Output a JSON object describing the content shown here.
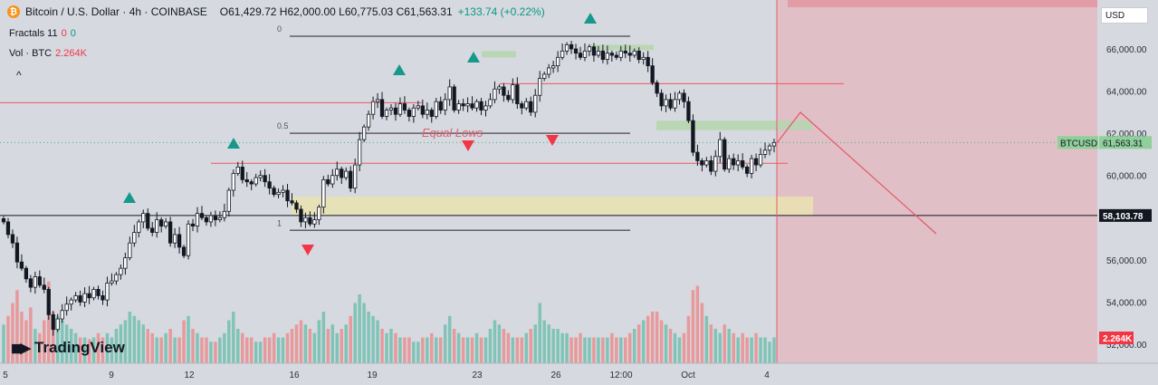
{
  "header": {
    "symbol": "Bitcoin / U.S. Dollar · 4h · COINBASE",
    "ohlc": "O61,429.72 H62,000.00 L60,775.03 C61,563.31",
    "change": "+133.74 (+0.22%)"
  },
  "indicators": {
    "fractals_label": "Fractals 11",
    "fractals_v1": "0",
    "fractals_v2": "0",
    "vol_label": "Vol · BTC",
    "vol_value": "2.264K",
    "collapse_glyph": "^"
  },
  "currency_button": "USD",
  "logo_text": "TradingView",
  "colors": {
    "up": "#2d9c8a",
    "down": "#e0524f",
    "fractal_up": "#14998a",
    "fractal_down": "#f23645",
    "fib_line": "#5d606b",
    "red_line": "#f0585f",
    "zone_yellow": "#e9e2b0",
    "zone_green": "#b6d6b0",
    "projection_zone": "#e9a9b2"
  },
  "chart_data": {
    "type": "candlestick",
    "symbol": "BTCUSD",
    "timeframe": "4h",
    "y_axis": {
      "min": 51000,
      "max": 67700,
      "tick_labels": [
        "66,000.00",
        "64,000.00",
        "62,000.00",
        "60,000.00",
        "56,000.00",
        "54,000.00",
        "52,000.00"
      ],
      "tick_values": [
        66000,
        64000,
        62000,
        60000,
        56000,
        54000,
        52000
      ]
    },
    "x_axis": {
      "tick_labels": [
        "5",
        "9",
        "12",
        "16",
        "19",
        "23",
        "26",
        "12:00",
        "Oct",
        "4"
      ]
    },
    "price_labels": {
      "current_symbol": "BTCUSD",
      "current_price": "61,563.31",
      "crosshair_price": "58,103.78",
      "volume": "2.264K"
    },
    "fib_levels": [
      {
        "label": "0",
        "price": 66600
      },
      {
        "label": "0.5",
        "price": 62000
      },
      {
        "label": "1",
        "price": 57400
      }
    ],
    "horizontal_levels": [
      63450,
      64350,
      60580
    ],
    "crosshair_level": 58103.78,
    "annotations": [
      "Equal Lows"
    ],
    "close_path": [
      57800,
      57200,
      56800,
      55900,
      55600,
      55100,
      54700,
      55200,
      54800,
      54600,
      53400,
      52700,
      53200,
      53600,
      53900,
      54100,
      54300,
      54000,
      54400,
      54200,
      54600,
      54300,
      54100,
      54900,
      55000,
      55300,
      55600,
      56100,
      56800,
      57300,
      57800,
      58200,
      57500,
      57300,
      57900,
      57600,
      57800,
      56800,
      57200,
      56600,
      56200,
      57700,
      57600,
      58200,
      58000,
      57800,
      58100,
      57900,
      58000,
      58300,
      59300,
      60100,
      60400,
      59800,
      59700,
      59600,
      59900,
      60000,
      59700,
      59400,
      59100,
      59200,
      59300,
      58800,
      58700,
      58400,
      57800,
      58000,
      57700,
      57900,
      58500,
      59800,
      59600,
      60000,
      60300,
      59900,
      60200,
      59400,
      60500,
      61700,
      62300,
      62900,
      63500,
      63600,
      62800,
      63100,
      63200,
      62900,
      63400,
      63100,
      62800,
      63200,
      63300,
      62900,
      63100,
      62800,
      63500,
      63100,
      63600,
      64200,
      63100,
      63400,
      63300,
      63400,
      63200,
      63500,
      63100,
      63300,
      63600,
      64100,
      64200,
      63800,
      63600,
      64300,
      63400,
      63200,
      63500,
      63000,
      63800,
      64600,
      64800,
      65100,
      65200,
      65600,
      65900,
      66200,
      66000,
      65800,
      65600,
      65900,
      66100,
      65700,
      65900,
      65500,
      65800,
      65700,
      65600,
      65900,
      65800,
      65700,
      65900,
      65500,
      65600,
      65200,
      64400,
      63900,
      63300,
      63600,
      63200,
      63600,
      63900,
      63500,
      62600,
      61100,
      60700,
      60500,
      60700,
      60200,
      60900,
      61700,
      60300,
      60800,
      60500,
      60700,
      60400,
      60100,
      60800,
      60500,
      61000,
      61200,
      61400,
      61563
    ],
    "volume_relative": [
      0.45,
      0.55,
      0.7,
      0.85,
      0.6,
      0.5,
      0.65,
      0.4,
      0.35,
      0.5,
      0.95,
      0.6,
      0.55,
      0.5,
      0.45,
      0.4,
      0.35,
      0.3,
      0.3,
      0.28,
      0.3,
      0.35,
      0.3,
      0.35,
      0.3,
      0.4,
      0.45,
      0.5,
      0.6,
      0.55,
      0.5,
      0.45,
      0.4,
      0.35,
      0.3,
      0.3,
      0.35,
      0.4,
      0.3,
      0.3,
      0.5,
      0.55,
      0.4,
      0.35,
      0.3,
      0.3,
      0.25,
      0.25,
      0.3,
      0.35,
      0.5,
      0.6,
      0.4,
      0.35,
      0.3,
      0.3,
      0.25,
      0.25,
      0.3,
      0.3,
      0.35,
      0.3,
      0.3,
      0.35,
      0.4,
      0.45,
      0.5,
      0.45,
      0.4,
      0.35,
      0.5,
      0.6,
      0.4,
      0.45,
      0.35,
      0.4,
      0.45,
      0.55,
      0.7,
      0.8,
      0.7,
      0.6,
      0.55,
      0.5,
      0.4,
      0.35,
      0.4,
      0.35,
      0.3,
      0.3,
      0.3,
      0.25,
      0.25,
      0.3,
      0.3,
      0.35,
      0.3,
      0.3,
      0.45,
      0.55,
      0.4,
      0.35,
      0.3,
      0.3,
      0.3,
      0.35,
      0.3,
      0.3,
      0.4,
      0.5,
      0.45,
      0.4,
      0.35,
      0.3,
      0.3,
      0.3,
      0.35,
      0.4,
      0.45,
      0.7,
      0.5,
      0.45,
      0.4,
      0.4,
      0.35,
      0.35,
      0.3,
      0.3,
      0.35,
      0.3,
      0.3,
      0.3,
      0.3,
      0.3,
      0.3,
      0.35,
      0.3,
      0.3,
      0.3,
      0.35,
      0.4,
      0.45,
      0.5,
      0.55,
      0.6,
      0.6,
      0.5,
      0.45,
      0.4,
      0.35,
      0.3,
      0.35,
      0.55,
      0.85,
      0.9,
      0.7,
      0.55,
      0.45,
      0.4,
      0.35,
      0.45,
      0.4,
      0.35,
      0.3,
      0.35,
      0.3,
      0.3,
      0.35,
      0.3,
      0.3,
      0.25,
      0.3
    ]
  }
}
